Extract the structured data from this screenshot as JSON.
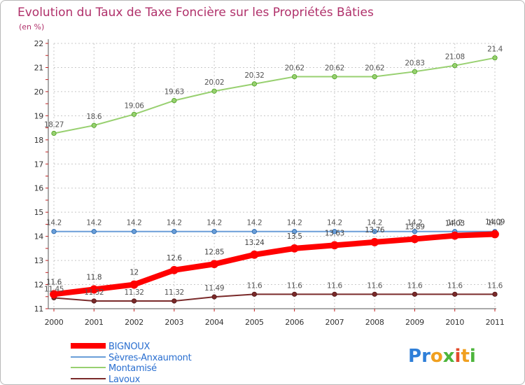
{
  "title": "Evolution du Taux de Taxe Foncière sur les Propriétés Bâties",
  "unit_label": "(en %)",
  "logo": {
    "letters": [
      {
        "ch": "P",
        "color": "#2f7fd8"
      },
      {
        "ch": "r",
        "color": "#2f7fd8"
      },
      {
        "ch": "o",
        "color": "#f0a020"
      },
      {
        "ch": "x",
        "color": "#4db53c"
      },
      {
        "ch": "i",
        "color": "#e34b2b"
      },
      {
        "ch": "t",
        "color": "#f0a020"
      },
      {
        "ch": "i",
        "color": "#4db53c"
      }
    ]
  },
  "chart_data": {
    "type": "line",
    "title": "Evolution du Taux de Taxe Foncière sur les Propriétés Bâties",
    "ylabel": "(en %)",
    "x": [
      "2000",
      "2001",
      "2002",
      "2003",
      "2004",
      "2005",
      "2006",
      "2007",
      "2008",
      "2009",
      "2010",
      "2011"
    ],
    "ylim": [
      11,
      22
    ],
    "yticks": [
      11,
      12,
      13,
      14,
      15,
      16,
      17,
      18,
      19,
      20,
      21,
      22
    ],
    "grid": true,
    "legend_position": "bottom-left",
    "series": [
      {
        "name": "BIGNOUX",
        "color": "#ff0000",
        "values": [
          11.6,
          11.8,
          12,
          12.6,
          12.85,
          13.24,
          13.5,
          13.63,
          13.76,
          13.89,
          14.03,
          14.09
        ],
        "labels": [
          "11.6",
          "11.8",
          "12",
          "12.6",
          "12.85",
          "13.24",
          "13.5",
          "13.63",
          "13.76",
          "13.89",
          "14.03",
          "14.09"
        ]
      },
      {
        "name": "Sèvres-Anxaumont",
        "color": "#6a9ed8",
        "values": [
          14.2,
          14.2,
          14.2,
          14.2,
          14.2,
          14.2,
          14.2,
          14.2,
          14.2,
          14.2,
          14.2,
          14.2
        ],
        "labels": [
          "14.2",
          "14.2",
          "14.2",
          "14.2",
          "14.2",
          "14.2",
          "14.2",
          "14.2",
          "14.2",
          "14.2",
          "14.2",
          "14.2"
        ]
      },
      {
        "name": "Montamisé",
        "color": "#98d070",
        "values": [
          18.27,
          18.6,
          19.06,
          19.63,
          20.02,
          20.32,
          20.62,
          20.62,
          20.62,
          20.83,
          21.08,
          21.4
        ],
        "labels": [
          "18.27",
          "18.6",
          "19.06",
          "19.63",
          "20.02",
          "20.32",
          "20.62",
          "20.62",
          "20.62",
          "20.83",
          "21.08",
          "21.4"
        ]
      },
      {
        "name": "Lavoux",
        "color": "#7a2a2a",
        "values": [
          11.45,
          11.32,
          11.32,
          11.32,
          11.49,
          11.6,
          11.6,
          11.6,
          11.6,
          11.6,
          11.6,
          11.6
        ],
        "labels": [
          "11.45",
          "11.32",
          "11.32",
          "11.32",
          "11.49",
          "11.6",
          "11.6",
          "11.6",
          "11.6",
          "11.6",
          "11.6",
          "11.6"
        ]
      }
    ]
  }
}
